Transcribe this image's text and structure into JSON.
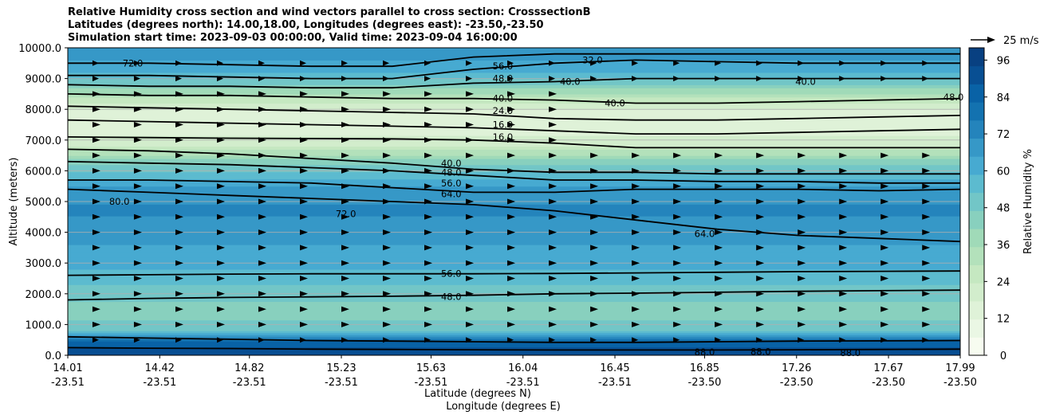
{
  "chart_data": {
    "type": "heatmap",
    "title_lines": [
      "Relative Humidity cross section and wind vectors parallel to cross section: CrosssectionB",
      "Latitudes (degrees north): 14.00,18.00, Longitudes (degrees east): -23.50,-23.50",
      "Simulation start time: 2023-09-03 00:00:00, Valid time: 2023-09-04 16:00:00"
    ],
    "ylabel": "Altitude (meters)",
    "xlabel_1": "Latitude (degrees N)",
    "xlabel_2": "Longitude (degrees E)",
    "ylim": [
      0,
      10000
    ],
    "y_ticks": [
      "0.0",
      "1000.0",
      "2000.0",
      "3000.0",
      "4000.0",
      "5000.0",
      "6000.0",
      "7000.0",
      "8000.0",
      "9000.0",
      "10000.0"
    ],
    "x_ticks_lat": [
      "14.01",
      "14.42",
      "14.82",
      "15.23",
      "15.63",
      "16.04",
      "16.45",
      "16.85",
      "17.26",
      "17.67",
      "17.99"
    ],
    "x_ticks_lon": [
      "-23.51",
      "-23.51",
      "-23.51",
      "-23.51",
      "-23.51",
      "-23.51",
      "-23.51",
      "-23.50",
      "-23.50",
      "-23.50",
      "-23.50"
    ],
    "grid": "horizontal",
    "colorbar": {
      "label": "Relative Humidity %",
      "ticks": [
        "0",
        "12",
        "24",
        "36",
        "48",
        "60",
        "72",
        "84",
        "96"
      ],
      "range": [
        0,
        100
      ],
      "colors": [
        "#f7fcf0",
        "#eaf7e4",
        "#dff2d8",
        "#d2edcc",
        "#c5e8c1",
        "#b3e1bb",
        "#a0dab8",
        "#88d0be",
        "#72c6c7",
        "#5cbbcf",
        "#47aad1",
        "#3698c7",
        "#2484bc",
        "#1372b0",
        "#0962a6",
        "#084f93",
        "#084081"
      ]
    },
    "quiver_key": "25 m/s",
    "rh_profile": [
      {
        "z": 0,
        "rh": 92
      },
      {
        "z": 400,
        "rh": 86
      },
      {
        "z": 800,
        "rh": 50
      },
      {
        "z": 1500,
        "rh": 44
      },
      {
        "z": 2000,
        "rh": 50
      },
      {
        "z": 2600,
        "rh": 57
      },
      {
        "z": 3200,
        "rh": 62
      },
      {
        "z": 4000,
        "rh": 68
      },
      {
        "z": 4800,
        "rh": 72
      },
      {
        "z": 5500,
        "rh": 66
      },
      {
        "z": 6200,
        "rh": 48
      },
      {
        "z": 6800,
        "rh": 24
      },
      {
        "z": 7500,
        "rh": 12
      },
      {
        "z": 8000,
        "rh": 16
      },
      {
        "z": 8600,
        "rh": 38
      },
      {
        "z": 9200,
        "rh": 60
      },
      {
        "z": 10000,
        "rh": 70
      }
    ],
    "contours": [
      {
        "level": "88.0",
        "y": [
          250,
          230,
          220,
          200,
          190,
          180,
          170,
          170,
          170,
          180,
          190,
          200
        ]
      },
      {
        "level": "80.0",
        "y": [
          600,
          560,
          520,
          480,
          460,
          440,
          420,
          420,
          440,
          460,
          470,
          480
        ]
      },
      {
        "level": "48.0",
        "y": [
          1800,
          1850,
          1880,
          1900,
          1920,
          1950,
          2000,
          2020,
          2050,
          2080,
          2100,
          2120
        ]
      },
      {
        "level": "56.0",
        "y": [
          2600,
          2620,
          2640,
          2650,
          2650,
          2650,
          2660,
          2680,
          2700,
          2720,
          2730,
          2740
        ]
      },
      {
        "level": "64.0",
        "y": [
          5400,
          5300,
          5200,
          5100,
          5000,
          4900,
          4700,
          4400,
          4100,
          3900,
          3800,
          3700
        ]
      },
      {
        "level": "56.0",
        "y": [
          5700,
          5700,
          5650,
          5600,
          5450,
          5300,
          5300,
          5400,
          5400,
          5400,
          5350,
          5400
        ]
      },
      {
        "level": "48.0",
        "y": [
          6300,
          6250,
          6200,
          6100,
          6000,
          5850,
          5700,
          5700,
          5650,
          5650,
          5600,
          5600
        ]
      },
      {
        "level": "40.0",
        "y": [
          6700,
          6650,
          6550,
          6400,
          6250,
          6050,
          5950,
          5950,
          5900,
          5900,
          5900,
          5900
        ]
      },
      {
        "level": "16.0",
        "y": [
          7100,
          7080,
          7060,
          7050,
          7040,
          7000,
          6900,
          6750,
          6750,
          6750,
          6750,
          6750
        ]
      },
      {
        "level": "16.0",
        "y": [
          7650,
          7600,
          7550,
          7500,
          7450,
          7400,
          7300,
          7200,
          7200,
          7250,
          7300,
          7350
        ]
      },
      {
        "level": "24.0",
        "y": [
          8100,
          8050,
          8000,
          7950,
          7900,
          7850,
          7700,
          7650,
          7650,
          7700,
          7750,
          7800
        ]
      },
      {
        "level": "40.0",
        "y": [
          8500,
          8450,
          8450,
          8400,
          8350,
          8350,
          8300,
          8200,
          8200,
          8250,
          8300,
          8350
        ]
      },
      {
        "level": "48.0",
        "y": [
          8800,
          8750,
          8750,
          8700,
          8700,
          8850,
          8900,
          9000,
          9000,
          9000,
          9000,
          9000
        ]
      },
      {
        "level": "56.0",
        "y": [
          9100,
          9100,
          9050,
          9000,
          9000,
          9300,
          9500,
          9600,
          9550,
          9500,
          9500,
          9500
        ]
      },
      {
        "level": "72.0",
        "y": [
          9500,
          9500,
          9450,
          9400,
          9400,
          9700,
          9800,
          9800,
          9800,
          9800,
          9800,
          9800
        ]
      }
    ],
    "contour_labels": [
      {
        "text": "56.0",
        "lat": 15.72,
        "z": 2650
      },
      {
        "text": "48.0",
        "lat": 15.72,
        "z": 1900
      },
      {
        "text": "64.0",
        "lat": 16.85,
        "z": 3950
      },
      {
        "text": "64.0",
        "lat": 15.72,
        "z": 5250
      },
      {
        "text": "56.0",
        "lat": 15.72,
        "z": 5600
      },
      {
        "text": "48.0",
        "lat": 15.72,
        "z": 5950
      },
      {
        "text": "40.0",
        "lat": 15.72,
        "z": 6250
      },
      {
        "text": "16.0",
        "lat": 15.95,
        "z": 7100
      },
      {
        "text": "16.0",
        "lat": 15.95,
        "z": 7500
      },
      {
        "text": "24.0",
        "lat": 15.95,
        "z": 7950
      },
      {
        "text": "40.0",
        "lat": 15.95,
        "z": 8350
      },
      {
        "text": "48.0",
        "lat": 15.95,
        "z": 9000
      },
      {
        "text": "56.0",
        "lat": 15.95,
        "z": 9400
      },
      {
        "text": "40.0",
        "lat": 16.25,
        "z": 8900
      },
      {
        "text": "32.0",
        "lat": 16.35,
        "z": 9600
      },
      {
        "text": "40.0",
        "lat": 16.45,
        "z": 8200
      },
      {
        "text": "40.0",
        "lat": 17.3,
        "z": 8900
      },
      {
        "text": "48.0",
        "lat": 17.96,
        "z": 8400
      },
      {
        "text": "72.0",
        "lat": 15.25,
        "z": 4600
      },
      {
        "text": "80.0",
        "lat": 14.24,
        "z": 5000
      },
      {
        "text": "72.0",
        "lat": 14.3,
        "z": 9500
      },
      {
        "text": "88.0",
        "lat": 16.85,
        "z": 100
      },
      {
        "text": "88.0",
        "lat": 17.5,
        "z": 80
      },
      {
        "text": "88.0",
        "lat": 17.1,
        "z": 120
      }
    ]
  }
}
